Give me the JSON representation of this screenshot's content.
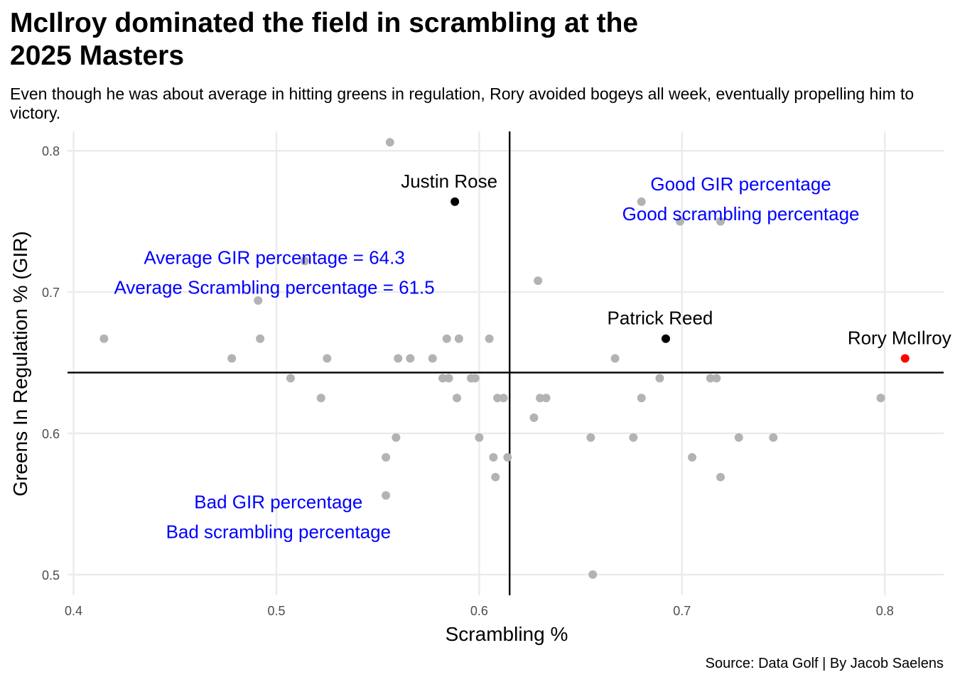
{
  "title": "McIlroy dominated the field in scrambling at the\n2025 Masters",
  "subtitle": "Even though he was about average in hitting greens in regulation, Rory avoided bogeys all week, eventually propelling him to victory.",
  "caption": "Source: Data Golf | By Jacob Saelens",
  "chart_data": {
    "type": "scatter",
    "xlabel": "Scrambling %",
    "ylabel": "Greens In Regulation % (GIR)",
    "xlim": [
      0.397,
      0.829
    ],
    "ylim": [
      0.4853,
      0.8137
    ],
    "x_ticks": [
      "0.4",
      "0.5",
      "0.6",
      "0.7",
      "0.8"
    ],
    "y_ticks": [
      "0.5",
      "0.6",
      "0.7",
      "0.8"
    ],
    "grid": true,
    "reference_lines": {
      "x": 0.615,
      "y": 0.643
    },
    "series": [
      {
        "points": [
          [
            0.556,
            0.806
          ],
          [
            0.68,
            0.764
          ],
          [
            0.699,
            0.75
          ],
          [
            0.719,
            0.75
          ],
          [
            0.514,
            0.722
          ],
          [
            0.491,
            0.694
          ],
          [
            0.629,
            0.708
          ],
          [
            0.415,
            0.667
          ],
          [
            0.492,
            0.667
          ],
          [
            0.584,
            0.667
          ],
          [
            0.59,
            0.667
          ],
          [
            0.605,
            0.667
          ],
          [
            0.478,
            0.653
          ],
          [
            0.525,
            0.653
          ],
          [
            0.56,
            0.653
          ],
          [
            0.566,
            0.653
          ],
          [
            0.577,
            0.653
          ],
          [
            0.667,
            0.653
          ],
          [
            0.507,
            0.639
          ],
          [
            0.582,
            0.639
          ],
          [
            0.585,
            0.639
          ],
          [
            0.596,
            0.639
          ],
          [
            0.598,
            0.639
          ],
          [
            0.689,
            0.639
          ],
          [
            0.714,
            0.639
          ],
          [
            0.717,
            0.639
          ],
          [
            0.522,
            0.625
          ],
          [
            0.589,
            0.625
          ],
          [
            0.609,
            0.625
          ],
          [
            0.612,
            0.625
          ],
          [
            0.63,
            0.625
          ],
          [
            0.633,
            0.625
          ],
          [
            0.68,
            0.625
          ],
          [
            0.798,
            0.625
          ],
          [
            0.627,
            0.611
          ],
          [
            0.559,
            0.597
          ],
          [
            0.6,
            0.597
          ],
          [
            0.655,
            0.597
          ],
          [
            0.676,
            0.597
          ],
          [
            0.728,
            0.597
          ],
          [
            0.745,
            0.597
          ],
          [
            0.554,
            0.583
          ],
          [
            0.607,
            0.583
          ],
          [
            0.614,
            0.583
          ],
          [
            0.705,
            0.583
          ],
          [
            0.608,
            0.569
          ],
          [
            0.719,
            0.569
          ],
          [
            0.554,
            0.556
          ],
          [
            0.656,
            0.5
          ]
        ]
      }
    ],
    "highlighted": [
      {
        "label": "Justin Rose",
        "x": 0.588,
        "y": 0.764,
        "color": "#000000"
      },
      {
        "label": "Patrick Reed",
        "x": 0.692,
        "y": 0.667,
        "color": "#000000"
      },
      {
        "label": "Rory McIlroy",
        "x": 0.81,
        "y": 0.653,
        "color": "#ff0000"
      }
    ],
    "annotations": [
      {
        "lines": [
          "Good GIR percentage",
          "Good scrambling percentage"
        ],
        "x": 0.729,
        "y": 0.772,
        "color": "#0000ff"
      },
      {
        "lines": [
          "Average GIR percentage = 64.3",
          "Average Scrambling percentage = 61.5"
        ],
        "x": 0.499,
        "y": 0.72,
        "color": "#0000ff"
      },
      {
        "lines": [
          "Bad GIR percentage",
          "Bad scrambling percentage"
        ],
        "x": 0.501,
        "y": 0.547,
        "color": "#0000ff"
      }
    ],
    "colors": {
      "points": "#b3b3b3",
      "highlight": "#000000",
      "mcilroy": "#ff0000",
      "annotation": "#0000ff"
    }
  }
}
